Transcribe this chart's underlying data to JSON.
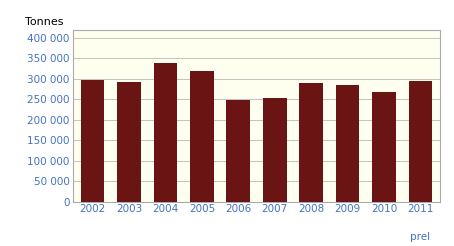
{
  "categories": [
    "2002",
    "2003",
    "2004",
    "2005",
    "2006",
    "2007",
    "2008",
    "2009",
    "2010",
    "2011"
  ],
  "prel_label": "prel",
  "values": [
    298000,
    293000,
    338000,
    318000,
    249000,
    252000,
    290000,
    285000,
    268000,
    294000
  ],
  "bar_color": "#6b1414",
  "plot_bg_color": "#fffff0",
  "fig_bg_color": "#ffffff",
  "ylabel": "Tonnes",
  "ylim": [
    0,
    420000
  ],
  "yticks": [
    0,
    50000,
    100000,
    150000,
    200000,
    250000,
    300000,
    350000,
    400000
  ],
  "grid_color": "#aaaaaa",
  "tick_label_color": "#4472c4",
  "ylabel_color": "#000000",
  "ylabel_fontsize": 8,
  "tick_fontsize": 7.5,
  "border_color": "#aaaaaa"
}
